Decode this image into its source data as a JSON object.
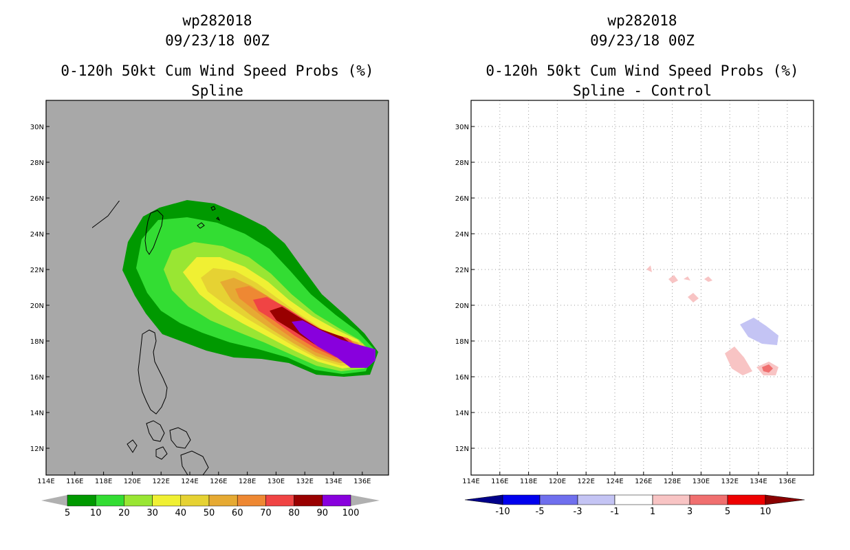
{
  "panels": [
    {
      "storm_id": "wp282018",
      "date": "09/23/18 00Z",
      "product": "0-120h 50kt Cum Wind Speed Probs (%)",
      "subtitle": "Spline",
      "background": "#a8a8a8",
      "colorbar": {
        "labels": [
          "5",
          "10",
          "20",
          "30",
          "40",
          "50",
          "60",
          "70",
          "80",
          "90",
          "100"
        ],
        "colors": [
          "#009900",
          "#33dd33",
          "#99e633",
          "#f0f033",
          "#e6d233",
          "#e6aa33",
          "#ee8833",
          "#f04444",
          "#990000",
          "#8800dd"
        ],
        "end_arrow_color": "#b0b0b0"
      }
    },
    {
      "storm_id": "wp282018",
      "date": "09/23/18 00Z",
      "product": "0-120h 50kt Cum Wind Speed Probs (%)",
      "subtitle": "Spline - Control",
      "background": "#ffffff",
      "colorbar": {
        "labels": [
          "-10",
          "-5",
          "-3",
          "-1",
          "1",
          "3",
          "5",
          "10"
        ],
        "colors": [
          "#00008a",
          "#0000ee",
          "#6f6fee",
          "#c4c4f4",
          "#ffffff",
          "#f8c4c4",
          "#f06f6f",
          "#ee0000",
          "#8a0000"
        ]
      }
    }
  ],
  "axes": {
    "x_labels": [
      "114E",
      "116E",
      "118E",
      "120E",
      "122E",
      "124E",
      "126E",
      "128E",
      "130E",
      "132E",
      "134E",
      "136E"
    ],
    "y_labels": [
      "12N",
      "14N",
      "16N",
      "18N",
      "20N",
      "22N",
      "24N",
      "26N",
      "28N",
      "30N"
    ]
  }
}
